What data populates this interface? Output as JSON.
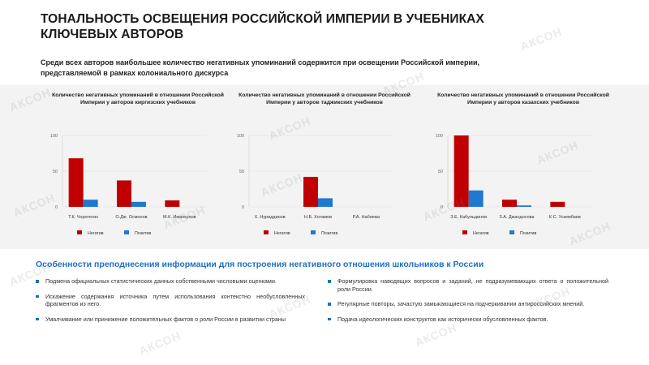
{
  "slide": {
    "title": "ТОНАЛЬНОСТЬ ОСВЕЩЕНИЯ РОССИЙСКОЙ ИМПЕРИИ В УЧЕБНИКАХ КЛЮЧЕВЫХ АВТОРОВ",
    "subtitle": "Среди всех авторов наибольшее количество негативных упоминаний содержится при освещении Российской империи, представляемой в рамках колониального дискурса",
    "watermark": "АКСОН",
    "section_title": "Особенности преподнесения информации для построения негативного отношения школьников к России",
    "bullets_left": [
      "Подмена официальных статистических данных собственными числовыми оценками.",
      "Искажение содержания источника путем использования контекстно необусловленных фрагментов из него.",
      "Умалчивание или принижение положительных фактов о роли России в развитии страны"
    ],
    "bullets_right": [
      "Формулировка наводящих вопросов и заданий, не подразумевающих ответа о положительной роли России.",
      "Регулярные повторы, зачастую замыкающиеся на подчеркивании антироссийских мнений.",
      "Подача идеологических конструктов как исторически обусловленных фактов."
    ]
  },
  "colors": {
    "negative": "#c00000",
    "positive": "#1f78d1",
    "accent": "#1f6fc4"
  },
  "chart_data": [
    {
      "type": "bar",
      "title": "Количество негативных упоминаний в отношении Российской Империи у авторов киргизских учебников",
      "categories": [
        "Т.К. Чоротегин",
        "О.Дж. Осмонов",
        "М.К. Иманкулов"
      ],
      "series": [
        {
          "name": "Негатив",
          "values": [
            68,
            37,
            9
          ]
        },
        {
          "name": "Позитив",
          "values": [
            10,
            7,
            0
          ]
        }
      ],
      "yticks": [
        "0",
        "50",
        "100"
      ],
      "ylim": [
        0,
        100
      ],
      "legend_position": "bottom"
    },
    {
      "type": "bar",
      "title": "Количество негативных упоминаний в отношении Российской Империи у авторов таджикских учебников",
      "categories": [
        "Х. Нуриддинов",
        "Н.Б. Хотамов",
        "Р.А. Набиева"
      ],
      "series": [
        {
          "name": "Негатив",
          "values": [
            0,
            42,
            0
          ]
        },
        {
          "name": "Позитив",
          "values": [
            0,
            12,
            0
          ]
        }
      ],
      "yticks": [
        "0",
        "50",
        "100"
      ],
      "ylim": [
        0,
        100
      ],
      "legend_position": "bottom"
    },
    {
      "type": "bar",
      "title": "Количество негативных упоминаний в отношении Российской Империи у авторов казахских учебников",
      "categories": [
        "З.Е. Кабульдинов",
        "З.А. Джандосова",
        "К.С. Ускембаев"
      ],
      "series": [
        {
          "name": "Негатив",
          "values": [
            100,
            10,
            7
          ]
        },
        {
          "name": "Позитив",
          "values": [
            23,
            2,
            0
          ]
        }
      ],
      "yticks": [
        "0",
        "50",
        "100"
      ],
      "ylim": [
        0,
        100
      ],
      "legend_position": "bottom"
    }
  ]
}
